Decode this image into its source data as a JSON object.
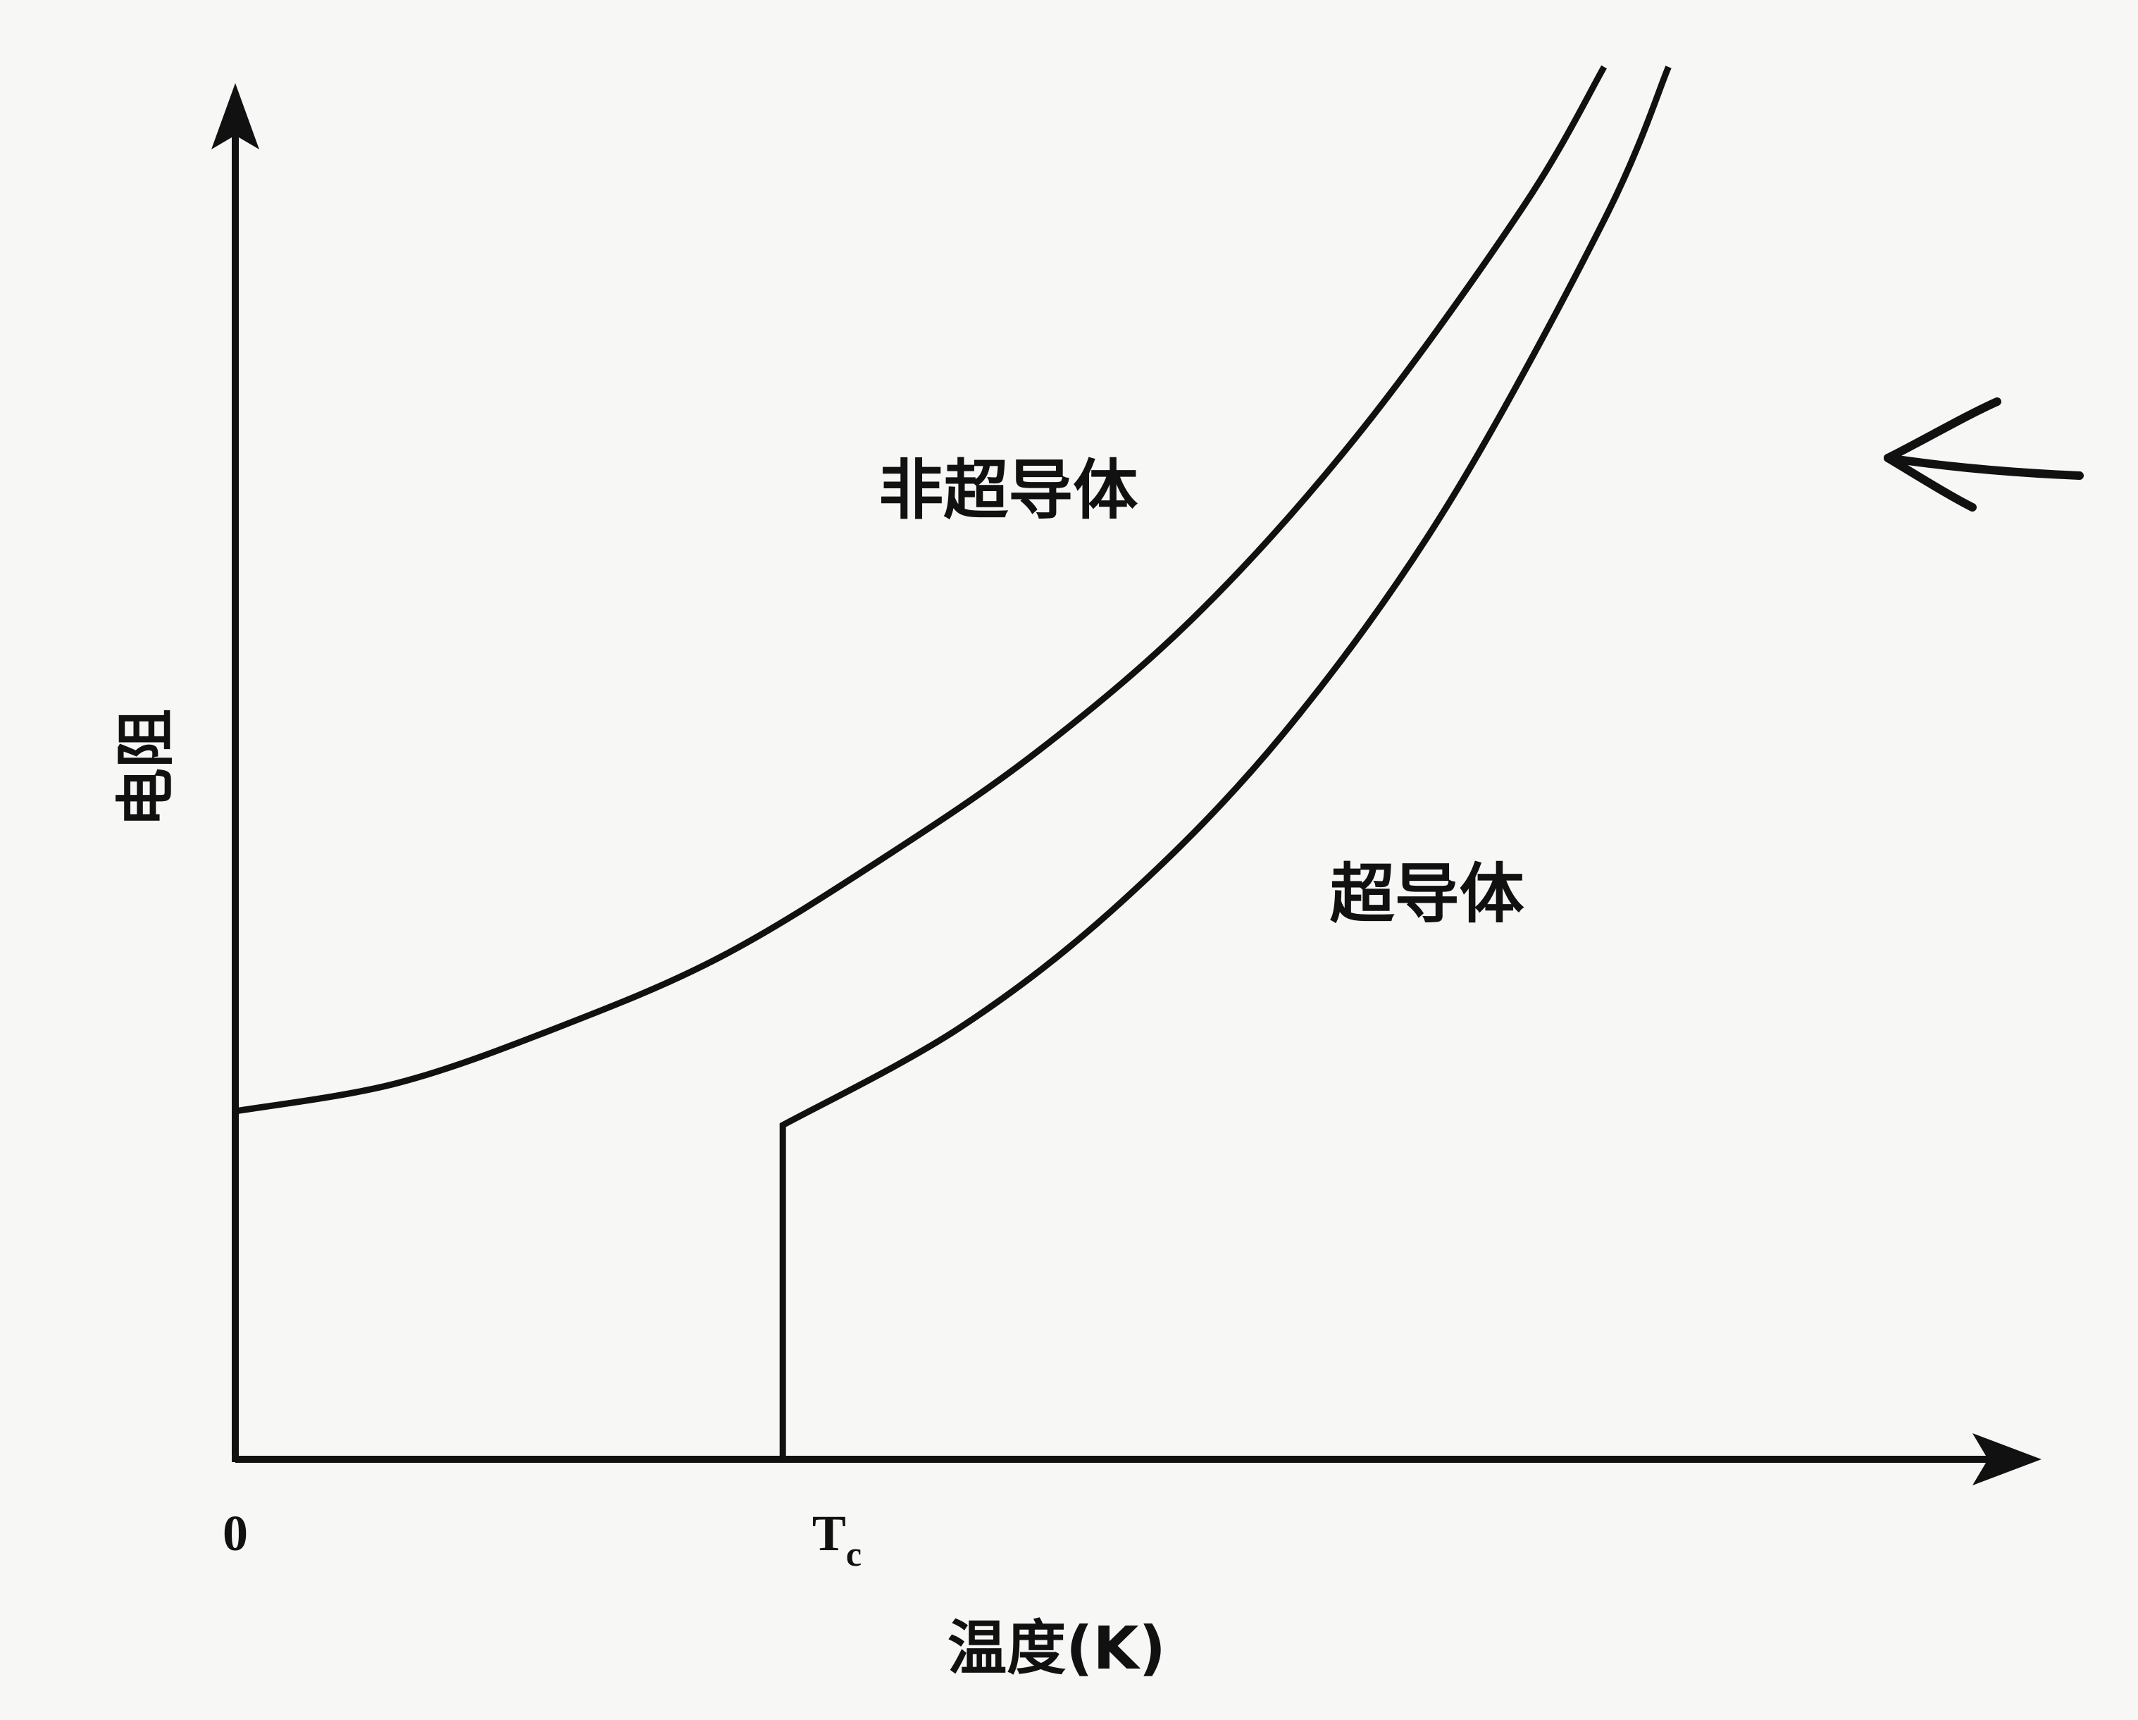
{
  "colors": {
    "background": "#f7f7f5",
    "ink": "#111111"
  },
  "annotation": {
    "icon": "hand-drawn-arrow-left-icon"
  },
  "chart_data": {
    "type": "line",
    "title": "",
    "xlabel": "温度(K)",
    "ylabel": "电阻",
    "xlim": [
      0,
      10
    ],
    "ylim": [
      0,
      10
    ],
    "x_ticks": [
      {
        "value": 0,
        "label": "0"
      },
      {
        "value": 3.4,
        "label": "T",
        "subscript": "c"
      }
    ],
    "grid": false,
    "legend": "none",
    "series": [
      {
        "name": "非超导体",
        "x": [
          0,
          1,
          2,
          3,
          4,
          5,
          6,
          7,
          8,
          8.5
        ],
        "y": [
          2.5,
          2.7,
          3.1,
          3.6,
          4.3,
          5.1,
          6.1,
          7.4,
          9.0,
          10.0
        ]
      },
      {
        "name": "超导体",
        "x": [
          3.4,
          3.4,
          3.4,
          4.5,
          5.5,
          6.5,
          7.5,
          8.5,
          8.9
        ],
        "y": [
          0,
          2.4,
          2.4,
          3.1,
          4.0,
          5.2,
          6.8,
          8.9,
          10.0
        ]
      }
    ],
    "annotations": [
      {
        "text": "非超导体",
        "x": 4.8,
        "y": 6.8
      },
      {
        "text": "超导体",
        "x": 7.4,
        "y": 3.9
      }
    ]
  }
}
